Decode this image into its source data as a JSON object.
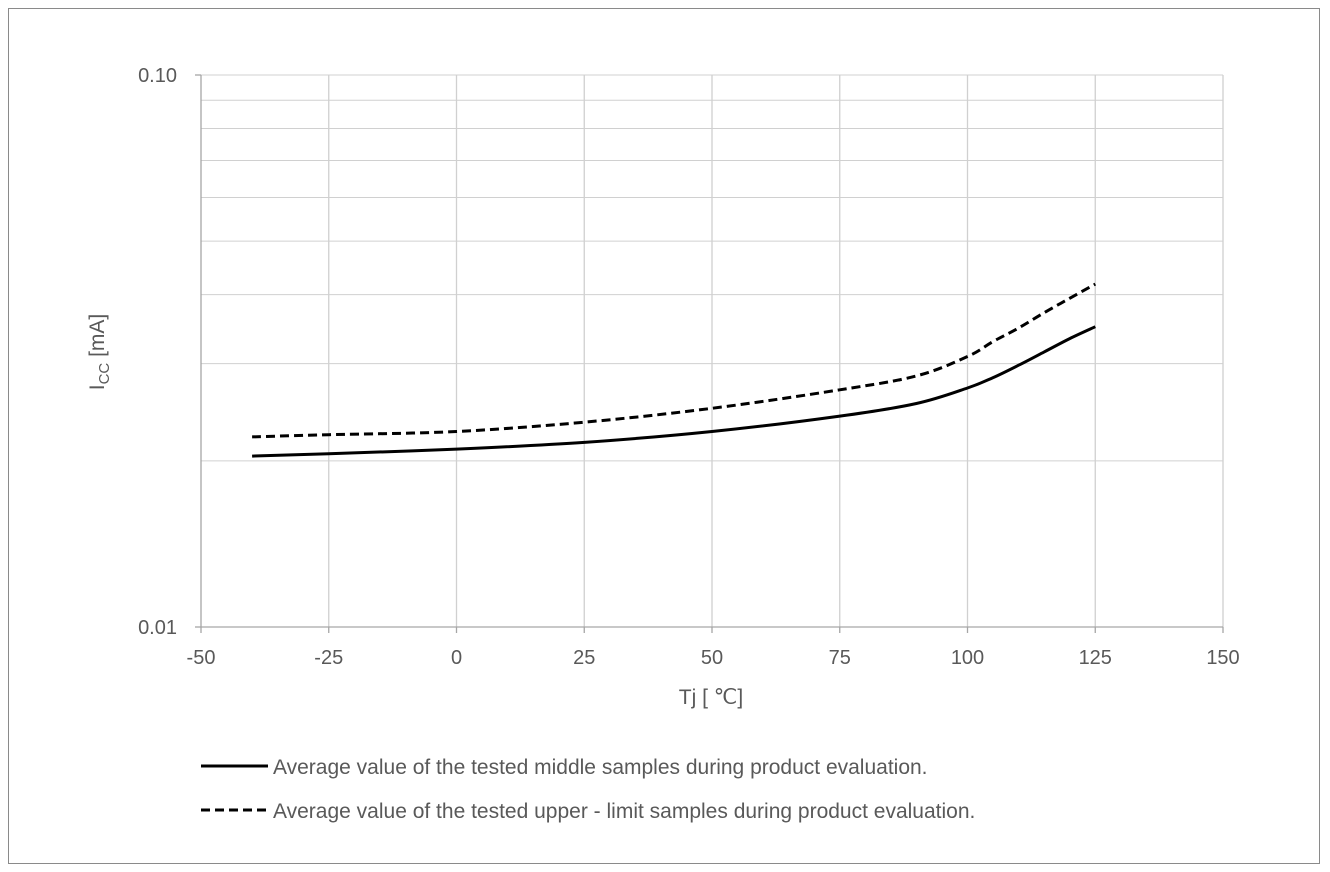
{
  "chart_data": {
    "type": "line",
    "xlabel": "Tj [ ℃]",
    "ylabel_main": "I",
    "ylabel_sub": "CC",
    "ylabel_unit": " [mA]",
    "x_ticks": [
      "-50",
      "-25",
      "0",
      "25",
      "50",
      "75",
      "100",
      "125",
      "150"
    ],
    "x_tick_values": [
      -50,
      -25,
      0,
      25,
      50,
      75,
      100,
      125,
      150
    ],
    "y_ticks": [
      "0.01",
      "0.10"
    ],
    "y_tick_values": [
      0.01,
      0.1
    ],
    "xlim": [
      -50,
      150
    ],
    "ylim": [
      0.01,
      0.1
    ],
    "y_scale": "log",
    "grid": true,
    "legend_position": "bottom",
    "series": [
      {
        "name": "Average value of the tested middle samples during product evaluation.",
        "style": "solid",
        "color": "#000000",
        "x": [
          -40,
          -25,
          0,
          25,
          50,
          75,
          90,
          100,
          105,
          110,
          115,
          120,
          125
        ],
        "y": [
          0.0204,
          0.0206,
          0.021,
          0.0216,
          0.0226,
          0.0241,
          0.0254,
          0.0271,
          0.0283,
          0.0298,
          0.0315,
          0.0333,
          0.035
        ]
      },
      {
        "name": "Average value of the tested upper - limit samples during product evaluation.",
        "style": "dashed",
        "color": "#000000",
        "x": [
          -40,
          -25,
          0,
          25,
          50,
          75,
          90,
          100,
          105,
          110,
          115,
          120,
          125
        ],
        "y": [
          0.0221,
          0.0223,
          0.0226,
          0.0235,
          0.0249,
          0.0269,
          0.0285,
          0.0309,
          0.0329,
          0.0348,
          0.0371,
          0.0394,
          0.0418
        ]
      }
    ]
  },
  "colors": {
    "grid": "#d0d0d0",
    "axis": "#a6a6a6",
    "text": "#595959",
    "line": "#000000"
  }
}
